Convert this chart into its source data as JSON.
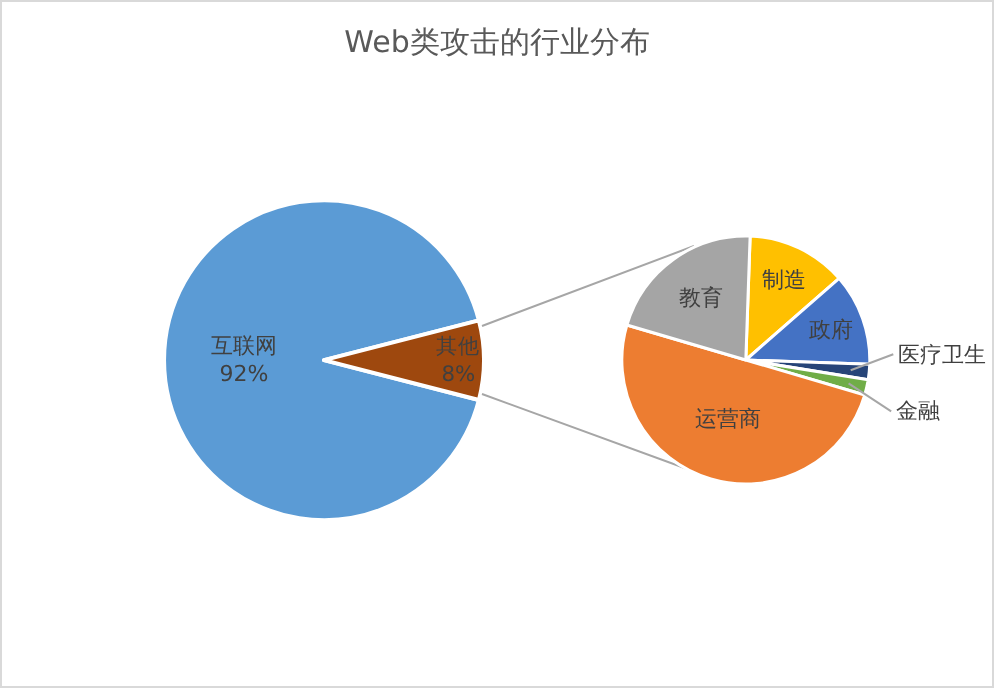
{
  "chart_data": [
    {
      "type": "pie",
      "title": "Web类攻击的行业分布",
      "categories": [
        "互联网",
        "其他"
      ],
      "values": [
        92,
        8
      ],
      "colors": [
        "#5b9bd5",
        "#9e480e"
      ],
      "value_labels": [
        "92%",
        "8%"
      ]
    },
    {
      "type": "pie",
      "categories": [
        "制造",
        "政府",
        "医疗卫生",
        "金融",
        "运营商",
        "教育"
      ],
      "values": [
        13,
        12,
        2,
        2,
        50,
        21
      ],
      "colors": [
        "#ffc000",
        "#4472c4",
        "#264478",
        "#70ad47",
        "#ed7d31",
        "#a5a5a5"
      ]
    }
  ]
}
